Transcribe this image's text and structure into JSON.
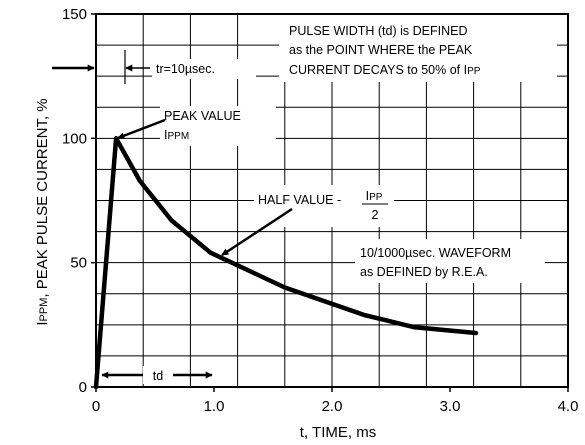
{
  "chart_data": {
    "type": "line",
    "xlabel": "t, TIME, ms",
    "ylabel_prefix": "I",
    "ylabel_sub": "PPM",
    "ylabel_rest": ", PEAK PULSE CURRENT, %",
    "xlim": [
      0,
      4.0
    ],
    "ylim": [
      0,
      150
    ],
    "xticks": [
      {
        "v": 0,
        "label": "0"
      },
      {
        "v": 1,
        "label": "1.0"
      },
      {
        "v": 2,
        "label": "2.0"
      },
      {
        "v": 3,
        "label": "3.0"
      },
      {
        "v": 4,
        "label": "4.0"
      }
    ],
    "yticks": [
      {
        "v": 0,
        "label": "0"
      },
      {
        "v": 50,
        "label": "50"
      },
      {
        "v": 100,
        "label": "100"
      },
      {
        "v": 150,
        "label": "150"
      }
    ],
    "grid": true,
    "series": [
      {
        "x": [
          0.0,
          0.17,
          0.37,
          0.64,
          0.97,
          1.6,
          2.27,
          2.7,
          3.22
        ],
        "y": [
          0,
          100,
          83,
          67,
          54,
          40,
          29,
          24,
          21.7
        ]
      }
    ],
    "annotations": {
      "pulse_width_lines": [
        "PULSE WIDTH (td) is DEFINED",
        "as the POINT WHERE the PEAK"
      ],
      "pulse_width_line3": "CURRENT DECAYS to 50% of I",
      "pulse_width_line3_sub": "PP",
      "tr_label": "tr=10µsec.",
      "peak_line1": "PEAK VALUE",
      "peak_line2_prefix": "I",
      "peak_line2_sub": "PPM",
      "half_prefix": "HALF VALUE - ",
      "half_num": "I",
      "half_num_sub": "PP",
      "half_den": "2",
      "waveform_lines": [
        "10/1000µsec. WAVEFORM",
        "as DEFINED by R.E.A."
      ],
      "td_label": "td"
    }
  }
}
